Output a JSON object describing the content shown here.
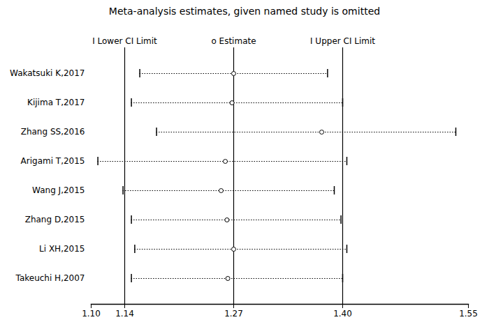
{
  "chart_data": {
    "type": "forest",
    "title": "Meta-analysis estimates, given named study is omitted",
    "categories": [
      "Wakatsuki K,2017",
      "Kijima T,2017",
      "Zhang SS,2016",
      "Arigami T,2015",
      "Wang J,2015",
      "Zhang D,2015",
      "Li XH,2015",
      "Takeuchi H,2007"
    ],
    "values": [
      1.27,
      1.268,
      1.375,
      1.26,
      1.255,
      1.262,
      1.27,
      1.263
    ],
    "lower_ci": [
      1.158,
      1.148,
      1.178,
      1.108,
      1.138,
      1.148,
      1.152,
      1.148
    ],
    "upper_ci": [
      1.382,
      1.4,
      1.535,
      1.405,
      1.39,
      1.398,
      1.405,
      1.4
    ],
    "reference_lines": [
      1.14,
      1.27,
      1.4
    ],
    "annotations": [
      {
        "text": "I Lower CI Limit",
        "x": 1.14
      },
      {
        "text": "o Estimate",
        "x": 1.27
      },
      {
        "text": "I Upper CI Limit",
        "x": 1.4
      }
    ],
    "xlim": [
      1.1,
      1.55
    ],
    "xticks": [
      {
        "value": 1.1,
        "label": "1.10"
      },
      1.14,
      1.27,
      {
        "value": 1.4,
        "label": "1.40"
      },
      1.55
    ],
    "color": "#000000",
    "grid": false
  }
}
